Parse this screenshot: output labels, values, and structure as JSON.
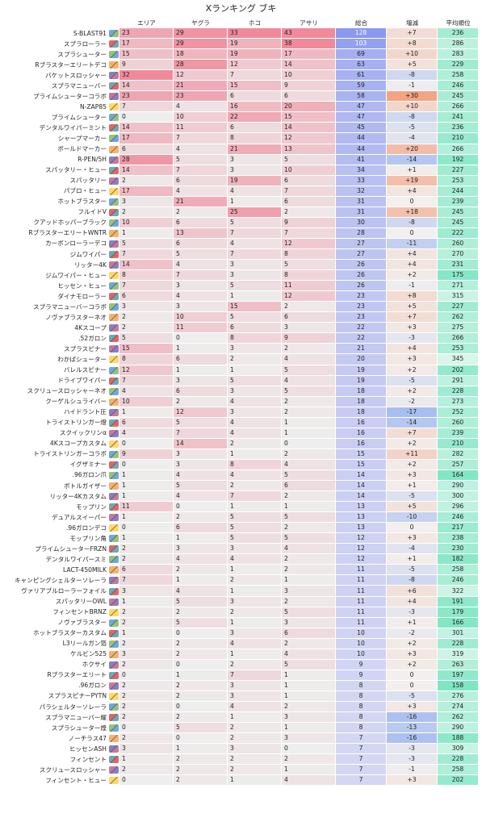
{
  "title": "Xランキング ブキ",
  "headers": [
    "エリア",
    "ヤグラ",
    "ホコ",
    "アサリ",
    "総合",
    "増減",
    "平均順位"
  ],
  "rows": [
    [
      "S-BLAST91",
      23,
      29,
      33,
      43,
      128,
      "+7",
      236
    ],
    [
      "スプラローラー",
      17,
      29,
      19,
      38,
      103,
      "+8",
      286
    ],
    [
      "スプラシューター",
      15,
      18,
      19,
      17,
      69,
      "+10",
      283
    ],
    [
      "Rブラスターエリートデコ",
      9,
      28,
      12,
      14,
      63,
      "+5",
      229
    ],
    [
      "バケットスロッシャー",
      32,
      12,
      7,
      10,
      61,
      "-8",
      258
    ],
    [
      "スプラマニューバー",
      14,
      21,
      15,
      9,
      59,
      "-1",
      246
    ],
    [
      "プライムシューターコラボ",
      23,
      23,
      6,
      6,
      58,
      "+30",
      245
    ],
    [
      "N-ZAP85",
      7,
      4,
      16,
      20,
      47,
      "+10",
      266
    ],
    [
      "プライムシューター",
      0,
      10,
      22,
      15,
      47,
      "-8",
      241
    ],
    [
      "デンタルワイパーミント",
      14,
      11,
      6,
      14,
      45,
      "-5",
      236
    ],
    [
      "シャープマーカー",
      17,
      7,
      8,
      12,
      44,
      "-4",
      210
    ],
    [
      "ボールドマーカー",
      6,
      4,
      21,
      13,
      44,
      "+20",
      266
    ],
    [
      "R-PEN/5H",
      28,
      5,
      3,
      5,
      41,
      "-14",
      192
    ],
    [
      "スパッタリー・ヒュー",
      14,
      7,
      3,
      10,
      34,
      "+1",
      227
    ],
    [
      "スパッタリー",
      2,
      6,
      19,
      6,
      33,
      "+19",
      253
    ],
    [
      "パブロ・ヒュー",
      17,
      4,
      4,
      7,
      32,
      "+4",
      244
    ],
    [
      "ホットブラスター",
      3,
      21,
      1,
      6,
      31,
      "0",
      239
    ],
    [
      "フルイドV",
      2,
      2,
      25,
      2,
      31,
      "+18",
      245
    ],
    [
      "クアッドホッパーブラック",
      10,
      6,
      5,
      9,
      30,
      "-8",
      245
    ],
    [
      "RブラスターエリートWNTR",
      1,
      13,
      7,
      7,
      28,
      "0",
      222
    ],
    [
      "カーボンローラーデコ",
      5,
      6,
      4,
      12,
      27,
      "-11",
      260
    ],
    [
      "ジムワイパー",
      7,
      5,
      7,
      8,
      27,
      "+4",
      270
    ],
    [
      "リッター4K",
      14,
      4,
      3,
      5,
      26,
      "+4",
      231
    ],
    [
      "ジムワイパー・ヒュー",
      8,
      7,
      3,
      8,
      26,
      "+2",
      175
    ],
    [
      "ヒッセン・ヒュー",
      7,
      3,
      5,
      11,
      26,
      "-1",
      271
    ],
    [
      "ダイナモローラー",
      6,
      4,
      1,
      12,
      23,
      "+8",
      315
    ],
    [
      "スプラマニューバーコラボ",
      3,
      3,
      15,
      2,
      23,
      "+5",
      227
    ],
    [
      "ノヴァブラスターネオ",
      2,
      10,
      5,
      6,
      23,
      "+7",
      262
    ],
    [
      "4Kスコープ",
      2,
      11,
      6,
      3,
      22,
      "+3",
      275
    ],
    [
      ".52ガロン",
      5,
      0,
      8,
      9,
      22,
      "-3",
      266
    ],
    [
      "スプラスピナー",
      15,
      1,
      3,
      2,
      21,
      "+4",
      253
    ],
    [
      "わかばシューター",
      8,
      6,
      2,
      4,
      20,
      "+3",
      345
    ],
    [
      "バレルスピナー",
      12,
      1,
      1,
      5,
      19,
      "+2",
      202
    ],
    [
      "ドライブワイパー",
      7,
      3,
      5,
      4,
      19,
      "-5",
      291
    ],
    [
      "スクリュースロッシャーネオ",
      4,
      6,
      3,
      5,
      18,
      "+2",
      228
    ],
    [
      "クーゲルシュライバー",
      10,
      2,
      4,
      2,
      18,
      "-2",
      273
    ],
    [
      "ハイドラント圧",
      1,
      12,
      3,
      2,
      18,
      "-17",
      252
    ],
    [
      "トライストリンガー燈",
      6,
      5,
      4,
      1,
      16,
      "-14",
      260
    ],
    [
      "スクイックリンα",
      4,
      7,
      4,
      1,
      16,
      "+7",
      239
    ],
    [
      "4Kスコープカスタム",
      0,
      14,
      2,
      0,
      16,
      "+2",
      210
    ],
    [
      "トライストリンガーコラボ",
      9,
      3,
      1,
      2,
      15,
      "+11",
      282
    ],
    [
      "イグザミナー",
      0,
      3,
      8,
      4,
      15,
      "+2",
      257
    ],
    [
      ".96ガロン爪",
      1,
      4,
      4,
      5,
      14,
      "+3",
      164
    ],
    [
      "ボトルガイザー",
      1,
      5,
      2,
      6,
      14,
      "+1",
      290
    ],
    [
      "リッター4Kカスタム",
      1,
      4,
      7,
      2,
      14,
      "-5",
      300
    ],
    [
      "モップリン",
      11,
      0,
      1,
      1,
      13,
      "+5",
      296
    ],
    [
      "デュアルスイーパー",
      1,
      2,
      5,
      5,
      13,
      "-10",
      246
    ],
    [
      ".96ガロンデコ",
      0,
      6,
      5,
      2,
      13,
      "0",
      217
    ],
    [
      "モップリン角",
      1,
      1,
      5,
      5,
      12,
      "+3",
      238
    ],
    [
      "プライムシューターFRZN",
      2,
      3,
      3,
      4,
      12,
      "-4",
      230
    ],
    [
      "デンタルワイパースミ",
      2,
      4,
      4,
      2,
      12,
      "+1",
      182
    ],
    [
      "LACT-450MILK",
      6,
      2,
      1,
      2,
      11,
      "-5",
      258
    ],
    [
      "キャンピングシェルターソレーラ",
      7,
      1,
      2,
      1,
      11,
      "-8",
      246
    ],
    [
      "ヴァリアブルローラーフォイル",
      3,
      4,
      1,
      3,
      11,
      "+6",
      322
    ],
    [
      "スパッタリーOWL",
      1,
      5,
      3,
      2,
      11,
      "+4",
      191
    ],
    [
      "フィンセントBRNZ",
      2,
      2,
      2,
      5,
      11,
      "-3",
      179
    ],
    [
      "ノヴァブラスター",
      2,
      5,
      1,
      3,
      11,
      "+1",
      166
    ],
    [
      "ホットブラスターカスタム",
      1,
      0,
      3,
      6,
      10,
      "-2",
      301
    ],
    [
      "L3リールガン箔",
      2,
      2,
      4,
      2,
      10,
      "+2",
      228
    ],
    [
      "ケルビン525",
      3,
      2,
      1,
      4,
      10,
      "+3",
      319
    ],
    [
      "ホクサイ",
      2,
      0,
      2,
      5,
      9,
      "+2",
      263
    ],
    [
      "Rブラスターエリート",
      0,
      1,
      7,
      1,
      9,
      "0",
      197
    ],
    [
      ".96ガロン",
      2,
      2,
      3,
      1,
      8,
      "0",
      158
    ],
    [
      "スプラスピナーPYTN",
      2,
      2,
      3,
      1,
      8,
      "-5",
      276
    ],
    [
      "パラシェルターソレーラ",
      2,
      0,
      4,
      2,
      8,
      "+3",
      274
    ],
    [
      "スプラマニューバー耀",
      2,
      2,
      1,
      3,
      8,
      "-16",
      262
    ],
    [
      "スプラシューター煌",
      0,
      5,
      2,
      1,
      8,
      "-13",
      290
    ],
    [
      "ノーチラス47",
      2,
      0,
      2,
      3,
      7,
      "-16",
      188
    ],
    [
      "ヒッセンASH",
      3,
      1,
      3,
      0,
      7,
      "-3",
      309
    ],
    [
      "フィンセント",
      1,
      2,
      2,
      2,
      7,
      "-3",
      228
    ],
    [
      "スクリュースロッシャー",
      2,
      2,
      2,
      1,
      7,
      "-1",
      258
    ],
    [
      "フィンセント・ヒュー",
      0,
      2,
      1,
      4,
      7,
      "+3",
      202
    ]
  ],
  "colors": {
    "mode_high": "#f08a9a",
    "mode_zero": "#eeeeee",
    "total_high": "#8a98f0",
    "total_low": "#ebeaf4",
    "change_pos": "#f4a383",
    "change_neg": "#a8bef0",
    "change_zero": "#f2efee",
    "rank_low": "#7ee6c3",
    "rank_high": "#d8f6ea"
  }
}
